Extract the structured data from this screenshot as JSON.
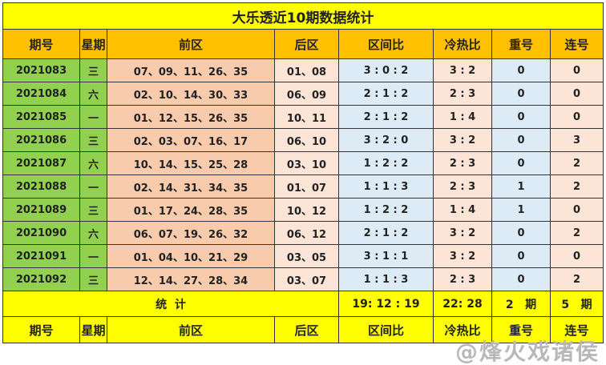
{
  "title": "大乐透近10期数据统计",
  "headers": [
    "期号",
    "星期",
    "前区",
    "后区",
    "区间比",
    "冷热比",
    "重号",
    "连号"
  ],
  "rows": [
    [
      "2021083",
      "三",
      "07、09、11、26、35",
      "01、08",
      "3 : 0 : 2",
      "3 : 2",
      "0",
      "0"
    ],
    [
      "2021084",
      "六",
      "02、10、14、30、33",
      "06、09",
      "2 : 1 : 2",
      "2 : 3",
      "0",
      "0"
    ],
    [
      "2021085",
      "一",
      "01、12、15、26、35",
      "10、11",
      "2 : 1 : 2",
      "1 : 4",
      "0",
      "0"
    ],
    [
      "2021086",
      "三",
      "02、03、07、16、17",
      "06、10",
      "3 : 2 : 0",
      "3 : 2",
      "0",
      "3"
    ],
    [
      "2021087",
      "六",
      "10、14、15、25、28",
      "03、10",
      "1 : 2 : 2",
      "2 : 3",
      "0",
      "2"
    ],
    [
      "2021088",
      "一",
      "02、14、31、34、35",
      "01、07",
      "1 : 1 : 3",
      "2 : 3",
      "1",
      "2"
    ],
    [
      "2021089",
      "三",
      "01、17、24、28、35",
      "10、12",
      "1 : 2 : 2",
      "1 : 4",
      "1",
      "0"
    ],
    [
      "2021090",
      "六",
      "06、07、19、26、32",
      "06、12",
      "2 : 1 : 2",
      "3 : 2",
      "0",
      "2"
    ],
    [
      "2021091",
      "一",
      "01、04、10、21、29",
      "03、05",
      "3 : 1 : 1",
      "3 : 2",
      "0",
      "0"
    ],
    [
      "2021092",
      "三",
      "12、14、27、28、34",
      "03、07",
      "1 : 1 : 3",
      "2 : 3",
      "0",
      "2"
    ]
  ],
  "stats": {
    "label": "统  计",
    "zone_ratio": "19: 12 : 19",
    "hot_cold": "22: 28",
    "repeat": "2   期",
    "consecutive": "5   期"
  },
  "watermark": "@烽火戏诸侯"
}
